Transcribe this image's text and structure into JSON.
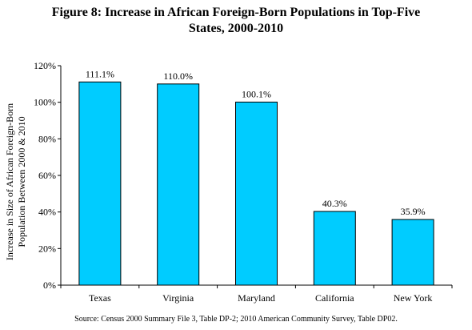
{
  "title_line1": "Figure 8: Increase in African Foreign-Born Populations in Top-Five",
  "title_line2": "States, 2000-2010",
  "source": "Source: Census 2000 Summary File 3, Table DP-2; 2010 American Community Survey, Table DP02.",
  "chart_data": {
    "type": "bar",
    "categories": [
      "Texas",
      "Virginia",
      "Maryland",
      "California",
      "New York"
    ],
    "values": [
      111.1,
      110.0,
      100.1,
      40.3,
      35.9
    ],
    "data_labels": [
      "111.1%",
      "110.0%",
      "100.1%",
      "40.3%",
      "35.9%"
    ],
    "ylabel_line1": "Increase in Size of African Foreign-Born",
    "ylabel_line2": "Population Between 2000 & 2010",
    "ylim": [
      0,
      120
    ],
    "yticks": [
      0,
      20,
      40,
      60,
      80,
      100,
      120
    ],
    "ytick_labels": [
      "0%",
      "20%",
      "40%",
      "60%",
      "80%",
      "100%",
      "120%"
    ],
    "grid": false,
    "legend": "none",
    "bar_color": "#00CCFF",
    "bar_edge_color": "#000000"
  }
}
